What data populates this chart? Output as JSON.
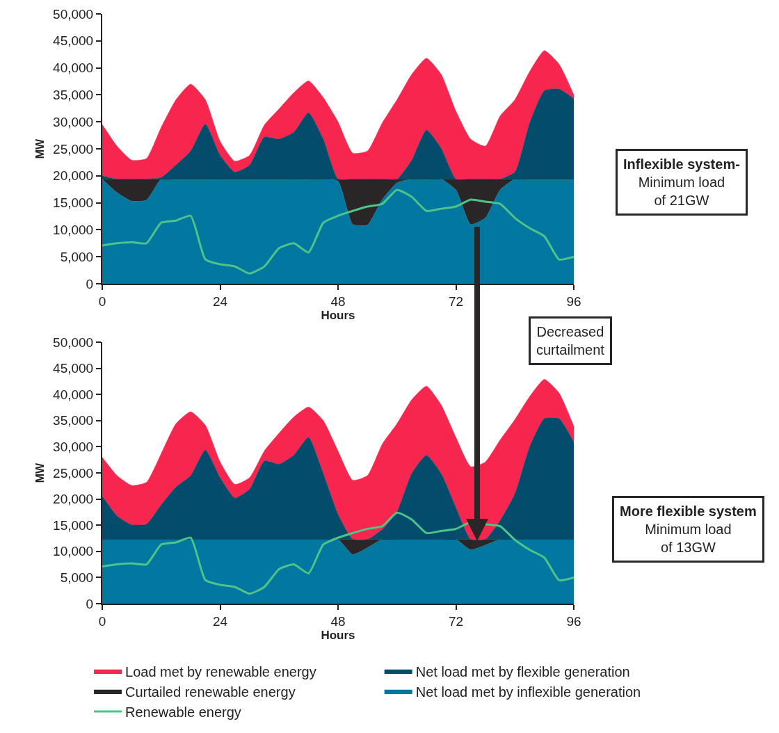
{
  "chart_data": [
    {
      "type": "area",
      "stacked": true,
      "xlabel": "Hours",
      "ylabel": "MW",
      "x": [
        0,
        3,
        6,
        9,
        12,
        15,
        18,
        21,
        24,
        27,
        30,
        33,
        36,
        39,
        42,
        45,
        48,
        51,
        54,
        57,
        60,
        63,
        66,
        69,
        72,
        75,
        78,
        81,
        84,
        87,
        90,
        93,
        96
      ],
      "xlim": [
        0,
        96
      ],
      "xticks": [
        0,
        24,
        48,
        72,
        96
      ],
      "ylim": [
        0,
        50000
      ],
      "yticks": [
        {
          "value": 0,
          "label": "0"
        },
        {
          "value": 5000,
          "label": "5,000"
        },
        {
          "value": 10000,
          "label": "10,000"
        },
        {
          "value": 15000,
          "label": "15,000"
        },
        {
          "value": 20000,
          "label": "20,000"
        },
        {
          "value": 25000,
          "label": "25,000"
        },
        {
          "value": 30000,
          "label": "30,000"
        },
        {
          "value": 35000,
          "label": "35,000"
        },
        {
          "value": 40000,
          "label": "40,000"
        },
        {
          "value": 45000,
          "label": "45,000"
        },
        {
          "value": 50000,
          "label": "50,000"
        }
      ],
      "series": [
        {
          "color": "#0277a0",
          "values": [
            19400,
            16900,
            15300,
            15500,
            19400,
            19400,
            19400,
            19400,
            19400,
            19400,
            19400,
            19400,
            19400,
            19400,
            19400,
            19400,
            19000,
            11000,
            10900,
            15600,
            18700,
            19400,
            19400,
            19400,
            17400,
            11000,
            12200,
            17400,
            19400,
            19400,
            19400,
            19400,
            19400
          ]
        },
        {
          "color": "#2a2627",
          "values": [
            0,
            2500,
            4100,
            3900,
            0,
            0,
            0,
            0,
            0,
            0,
            0,
            0,
            0,
            0,
            0,
            0,
            400,
            8400,
            8500,
            3800,
            700,
            0,
            0,
            0,
            2000,
            8400,
            7200,
            2000,
            0,
            0,
            0,
            0,
            0
          ]
        },
        {
          "color": "#044c6c",
          "values": [
            600,
            0,
            0,
            0,
            300,
            2600,
            5200,
            10200,
            4400,
            1300,
            2600,
            7800,
            7400,
            8700,
            12300,
            7400,
            0,
            0,
            0,
            0,
            0,
            3500,
            9100,
            5700,
            0,
            0,
            0,
            0,
            1300,
            10400,
            16400,
            16700,
            14900
          ]
        },
        {
          "color": "#f7264e",
          "values": [
            9500,
            6100,
            3500,
            3800,
            9300,
            12100,
            12400,
            4500,
            2600,
            2000,
            1800,
            2200,
            5600,
            7300,
            5900,
            7700,
            10600,
            4800,
            5200,
            10400,
            14700,
            15900,
            13300,
            13700,
            12600,
            7400,
            6100,
            11700,
            13400,
            9500,
            7400,
            4600,
            700
          ]
        },
        {
          "type": "line",
          "color": "#4fc48a",
          "values": [
            7100,
            7500,
            7700,
            7500,
            11300,
            11700,
            12600,
            4500,
            3600,
            3200,
            1900,
            3200,
            6600,
            7500,
            5800,
            11300,
            12600,
            13500,
            14300,
            14800,
            17400,
            16100,
            13500,
            13900,
            14300,
            15600,
            15200,
            14800,
            12200,
            10300,
            8800,
            4500,
            5000
          ]
        }
      ],
      "annotations": [
        "Inflexible system-\nMinimum load\nof 21GW"
      ]
    },
    {
      "type": "area",
      "stacked": true,
      "xlabel": "Hours",
      "ylabel": "MW",
      "legend": "bottom",
      "x": [
        0,
        3,
        6,
        9,
        12,
        15,
        18,
        21,
        24,
        27,
        30,
        33,
        36,
        39,
        42,
        45,
        48,
        51,
        54,
        57,
        60,
        63,
        66,
        69,
        72,
        75,
        78,
        81,
        84,
        87,
        90,
        93,
        96
      ],
      "xlim": [
        0,
        96
      ],
      "xticks": [
        0,
        24,
        48,
        72,
        96
      ],
      "ylim": [
        0,
        50000
      ],
      "yticks": [
        {
          "value": 0,
          "label": "0"
        },
        {
          "value": 5000,
          "label": "5,000"
        },
        {
          "value": 10000,
          "label": "10,000"
        },
        {
          "value": 15000,
          "label": "15,000"
        },
        {
          "value": 20000,
          "label": "20,000"
        },
        {
          "value": 25000,
          "label": "25,000"
        },
        {
          "value": 30000,
          "label": "30,000"
        },
        {
          "value": 35000,
          "label": "35,000"
        },
        {
          "value": 40000,
          "label": "40,000"
        },
        {
          "value": 45000,
          "label": "45,000"
        },
        {
          "value": 50000,
          "label": "50,000"
        }
      ],
      "series": [
        {
          "name": "Net load met by inflexible generation",
          "color": "#0277a0",
          "values": [
            12300,
            12300,
            12300,
            12300,
            12300,
            12300,
            12300,
            12300,
            12300,
            12300,
            12300,
            12300,
            12300,
            12300,
            12300,
            12300,
            12300,
            9400,
            10700,
            12300,
            12300,
            12300,
            12300,
            12300,
            12300,
            10300,
            11200,
            12300,
            12300,
            12300,
            12300,
            12300,
            12300
          ]
        },
        {
          "name": "Curtailed renewable energy",
          "color": "#2a2627",
          "values": [
            0,
            0,
            0,
            0,
            0,
            0,
            0,
            0,
            0,
            0,
            0,
            0,
            0,
            0,
            0,
            0,
            0,
            2900,
            1600,
            0,
            0,
            0,
            0,
            0,
            0,
            2000,
            1100,
            0,
            0,
            0,
            0,
            0,
            0
          ]
        },
        {
          "name": "Net load met by flexible generation",
          "color": "#044c6c",
          "values": [
            8300,
            4500,
            2800,
            2900,
            6600,
            10000,
            12200,
            17100,
            11800,
            7900,
            9600,
            15000,
            14400,
            16100,
            19500,
            12600,
            4800,
            0,
            0,
            1900,
            5300,
            12600,
            16100,
            12600,
            6100,
            0,
            0,
            3600,
            8700,
            17700,
            23100,
            23100,
            18600
          ]
        },
        {
          "name": "Load met by renewable energy",
          "color": "#f7264e",
          "values": [
            7400,
            7700,
            7500,
            8000,
            9800,
            12100,
            12200,
            4700,
            3000,
            2600,
            2200,
            1900,
            5900,
            7300,
            5800,
            10100,
            12100,
            11300,
            12200,
            16300,
            16800,
            14100,
            13200,
            13100,
            13400,
            13900,
            14800,
            15400,
            14200,
            9600,
            7500,
            4900,
            3000
          ]
        },
        {
          "name": "Renewable energy",
          "type": "line",
          "color": "#4fc48a",
          "values": [
            7100,
            7500,
            7700,
            7500,
            11300,
            11700,
            12600,
            4500,
            3600,
            3200,
            1900,
            3200,
            6600,
            7500,
            5800,
            11300,
            12600,
            13500,
            14300,
            14800,
            17400,
            16100,
            13500,
            13900,
            14300,
            15600,
            15200,
            14800,
            12200,
            10300,
            8800,
            4500,
            5000
          ]
        }
      ],
      "annotations": [
        "Decreased\ncurtailment",
        "More flexible system\nMinimum load\nof 13GW"
      ]
    }
  ]
}
